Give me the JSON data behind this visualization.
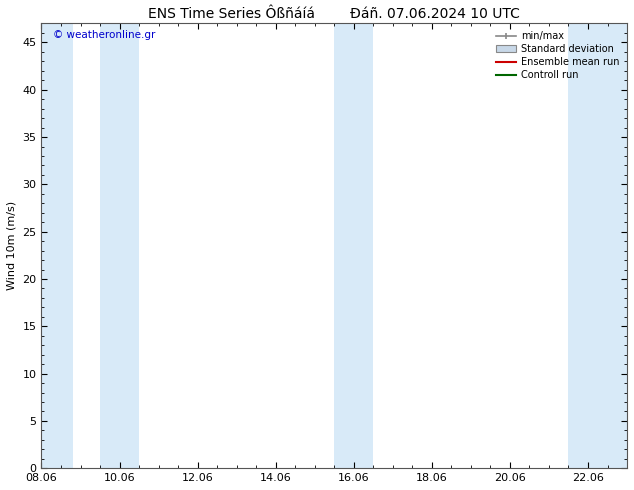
{
  "title": "ENS Time Series Ôßñáíá        Ðáñ. 07.06.2024 10 UTC",
  "ylabel": "Wind 10m (m/s)",
  "watermark": "© weatheronline.gr",
  "watermark_color": "#0000cc",
  "ylim": [
    0,
    47
  ],
  "yticks": [
    0,
    5,
    10,
    15,
    20,
    25,
    30,
    35,
    40,
    45
  ],
  "xtick_labels": [
    "08.06",
    "10.06",
    "12.06",
    "14.06",
    "16.06",
    "18.06",
    "20.06",
    "22.06"
  ],
  "shaded_bands": [
    [
      8,
      8.8
    ],
    [
      9.5,
      10.5
    ],
    [
      15.5,
      16.5
    ],
    [
      21.5,
      23.0
    ]
  ],
  "shaded_color": "#d8eaf8",
  "bg_color": "#ffffff",
  "legend_entries": [
    {
      "label": "min/max",
      "color": "#aaaaaa",
      "type": "errorbar"
    },
    {
      "label": "Standard deviation",
      "color": "#c8d8e8",
      "type": "box"
    },
    {
      "label": "Ensemble mean run",
      "color": "#cc0000",
      "type": "line"
    },
    {
      "label": "Controll run",
      "color": "#006600",
      "type": "line"
    }
  ],
  "title_fontsize": 10,
  "label_fontsize": 8,
  "tick_fontsize": 8,
  "x_min": 8,
  "x_max": 23,
  "tick_x_positions": [
    8,
    10,
    12,
    14,
    16,
    18,
    20,
    22
  ]
}
